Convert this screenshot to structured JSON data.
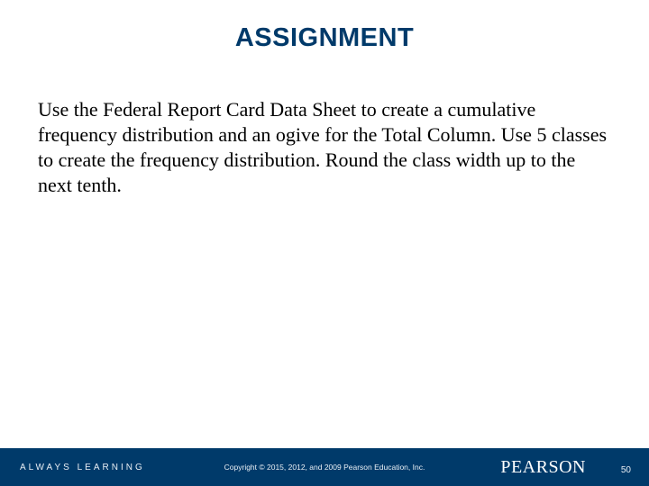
{
  "slide": {
    "title": "ASSIGNMENT",
    "body": "Use the Federal Report Card Data Sheet to create a cumulative frequency distribution and an ogive for the Total Column.  Use 5 classes to create the frequency distribution. Round the class width up to the next tenth.",
    "title_color": "#003a6a",
    "title_fontsize": 29,
    "body_fontsize": 22,
    "body_color": "#000000"
  },
  "footer": {
    "left_text": "ALWAYS LEARNING",
    "copyright": "Copyright © 2015, 2012, and 2009 Pearson Education, Inc.",
    "brand": "PEARSON",
    "page_number": "50",
    "background": "#003a6a",
    "text_color": "#ffffff"
  }
}
